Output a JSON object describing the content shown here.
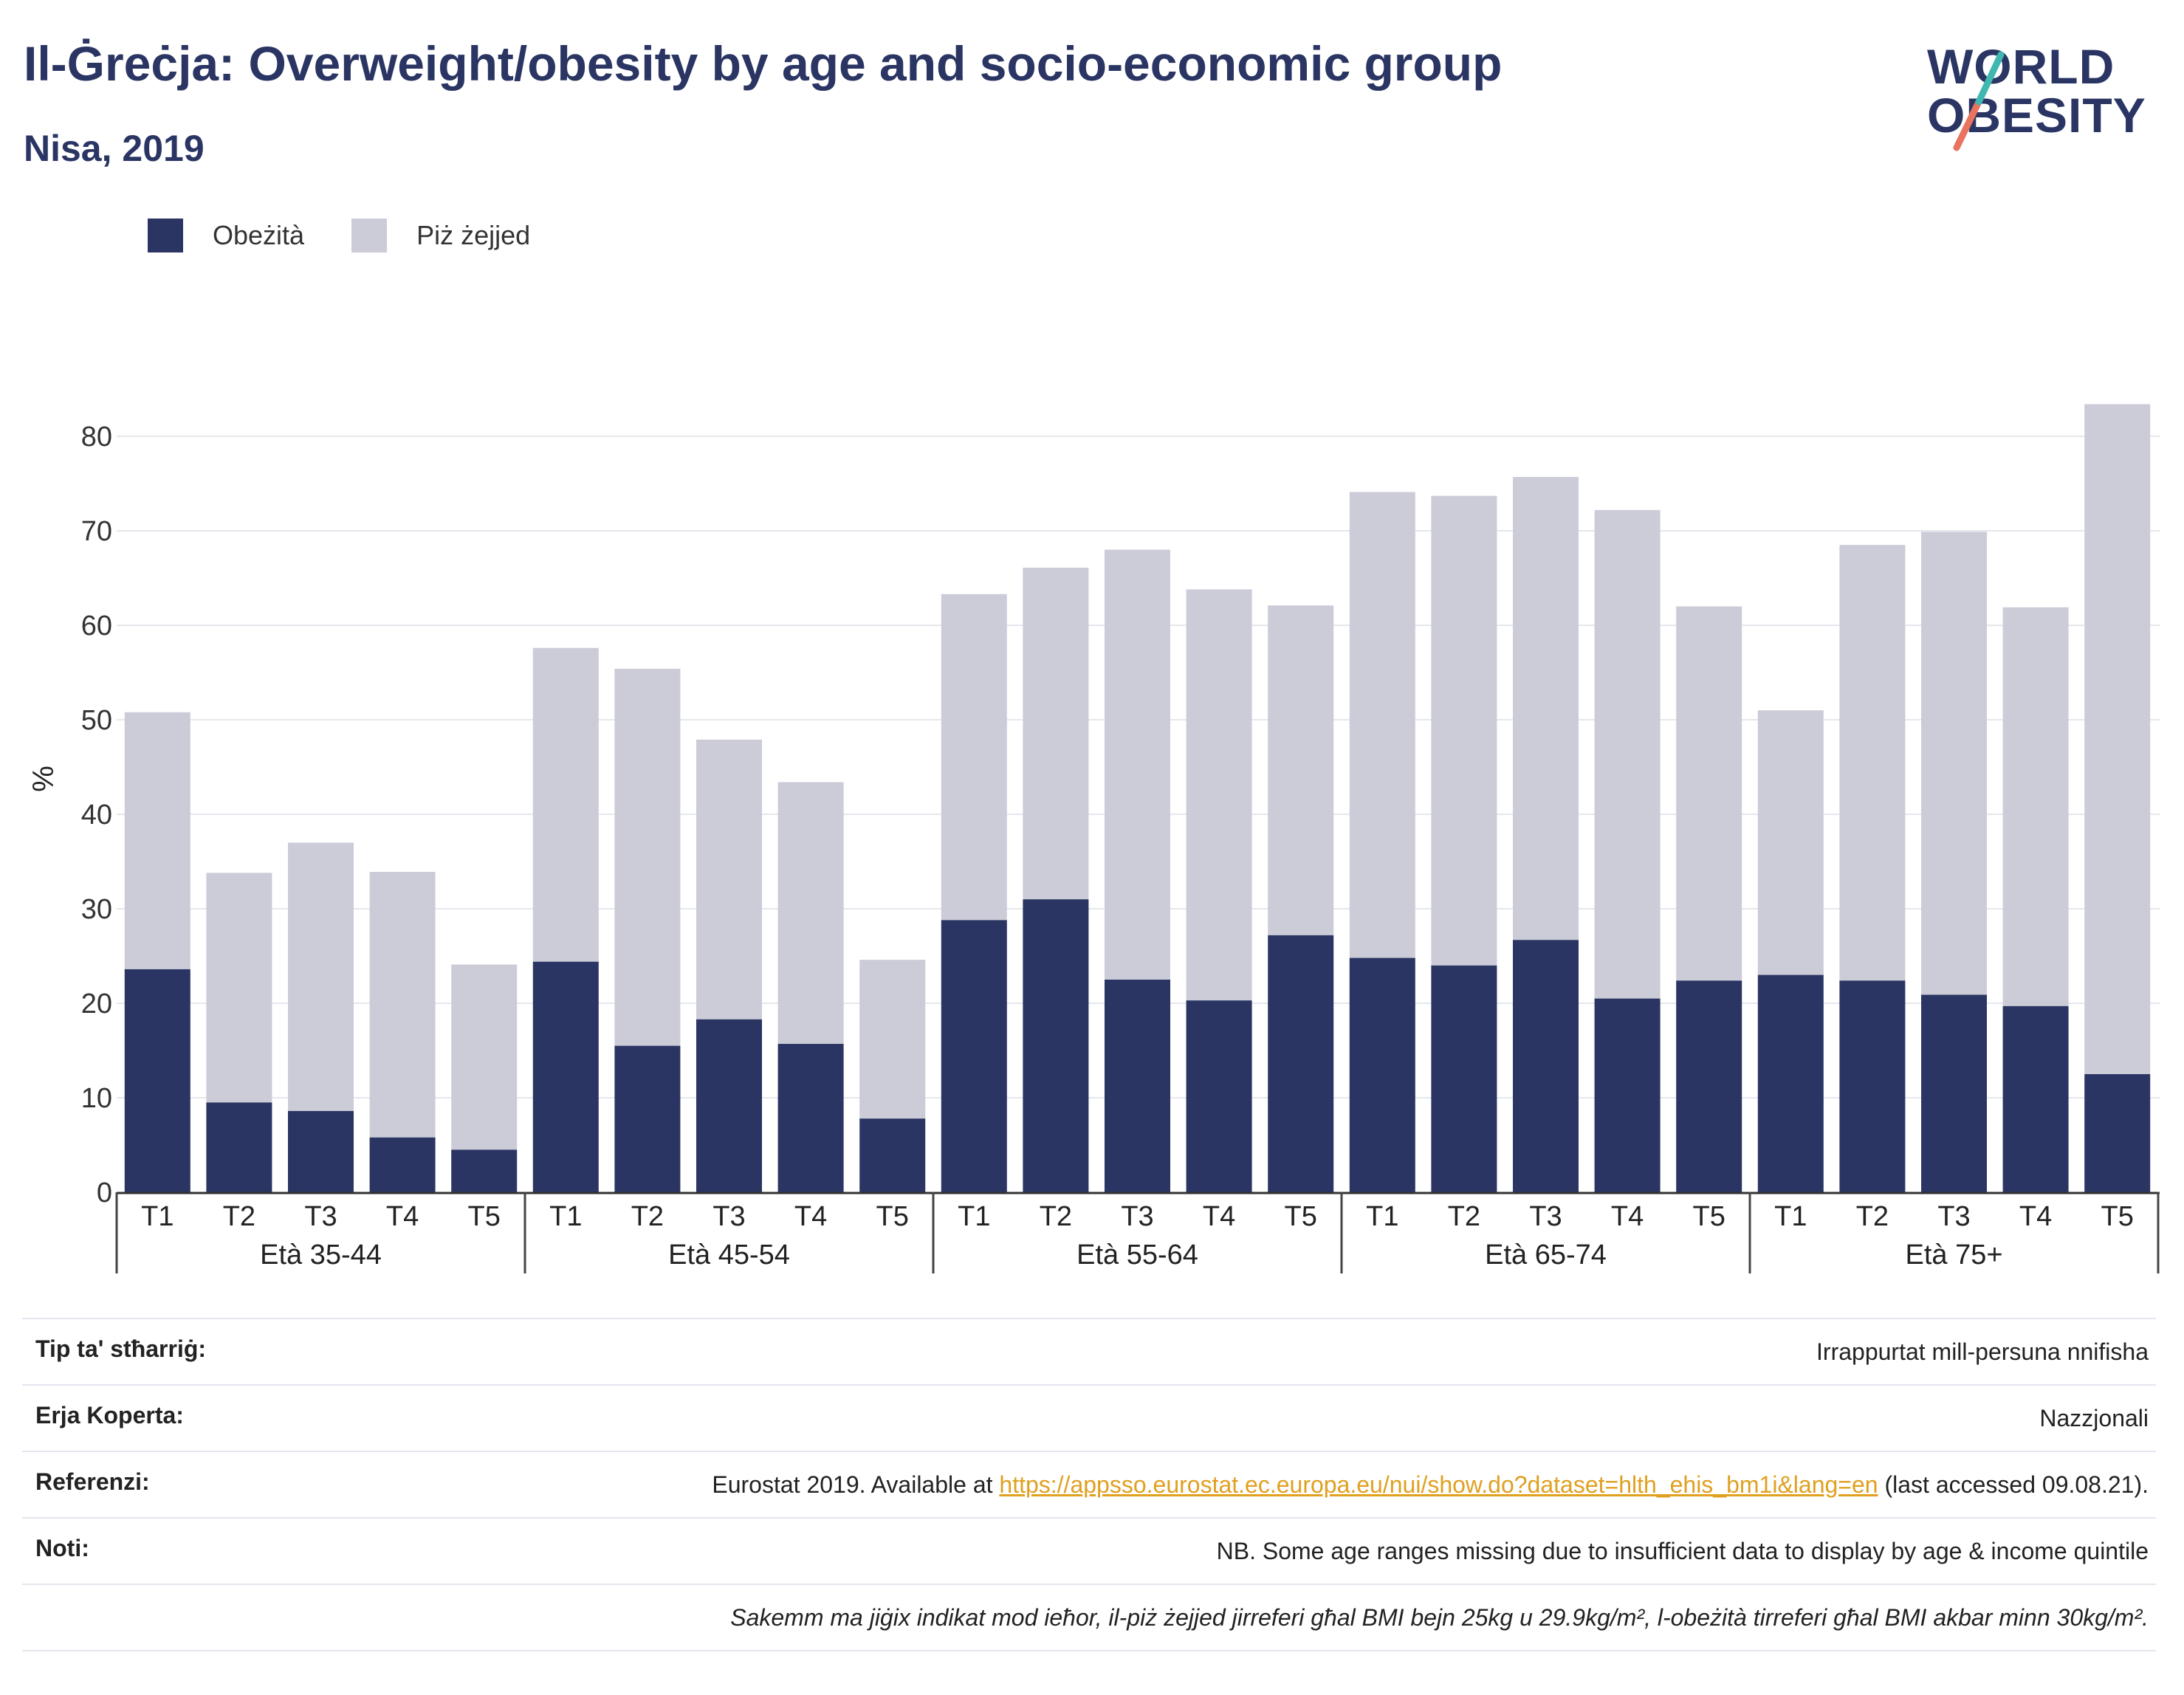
{
  "title": "Il-Ġreċja: Overweight/obesity by age and socio-economic group",
  "subtitle": "Nisa, 2019",
  "logo": {
    "line1": "WORLD",
    "line2": "OBESITY"
  },
  "legend": [
    {
      "label": "Obeżità",
      "color": "#2a3563"
    },
    {
      "label": "Piż żejjed",
      "color": "#cbccd8"
    }
  ],
  "chart_data": {
    "type": "bar",
    "stacked": true,
    "ylabel": "%",
    "xlabel": "",
    "ylim": [
      0,
      88
    ],
    "yticks": [
      0,
      10,
      20,
      30,
      40,
      50,
      60,
      70,
      80
    ],
    "grid": true,
    "legend_position": "top-left",
    "groups": [
      {
        "label": "Età 35-44",
        "categories": [
          "T1",
          "T2",
          "T3",
          "T4",
          "T5"
        ],
        "obesity": [
          23.6,
          9.5,
          8.6,
          5.8,
          4.5
        ],
        "total": [
          50.8,
          33.8,
          37.0,
          33.9,
          24.1
        ]
      },
      {
        "label": "Età 45-54",
        "categories": [
          "T1",
          "T2",
          "T3",
          "T4",
          "T5"
        ],
        "obesity": [
          24.4,
          15.5,
          18.3,
          15.7,
          7.8
        ],
        "total": [
          57.6,
          55.4,
          47.9,
          43.4,
          24.6
        ]
      },
      {
        "label": "Età 55-64",
        "categories": [
          "T1",
          "T2",
          "T3",
          "T4",
          "T5"
        ],
        "obesity": [
          28.8,
          31.0,
          22.5,
          20.3,
          27.2
        ],
        "total": [
          63.3,
          66.1,
          68.0,
          63.8,
          62.1
        ]
      },
      {
        "label": "Età 65-74",
        "categories": [
          "T1",
          "T2",
          "T3",
          "T4",
          "T5"
        ],
        "obesity": [
          24.8,
          24.0,
          26.7,
          20.5,
          22.4
        ],
        "total": [
          74.1,
          73.7,
          75.7,
          72.2,
          62.0
        ]
      },
      {
        "label": "Età 75+",
        "categories": [
          "T1",
          "T2",
          "T3",
          "T4",
          "T5"
        ],
        "obesity": [
          23.0,
          22.4,
          20.9,
          19.7,
          12.5
        ],
        "total": [
          51.0,
          68.5,
          69.9,
          61.9,
          83.4
        ]
      }
    ]
  },
  "notes": {
    "survey_type_label": "Tip ta' stħarriġ:",
    "survey_type_value": "Irrappurtat mill-persuna nnifisha",
    "area_label": "Erja Koperta:",
    "area_value": "Nazzjonali",
    "references_label": "Referenzi:",
    "references_prefix": "Eurostat 2019. Available at ",
    "references_link": "https://appsso.eurostat.ec.europa.eu/nui/show.do?dataset=hlth_ehis_bm1i&lang=en",
    "references_suffix": " (last accessed 09.08.21).",
    "notes_label": "Noti:",
    "notes_value": "NB. Some age ranges missing due to insufficient data to display by age & income quintile",
    "definition": "Sakemm ma jiġix indikat mod ieħor, il-piż żejjed jirreferi għal BMI bejn 25kg u 29.9kg/m², l-obeżità tirreferi għal BMI akbar minn 30kg/m²."
  }
}
